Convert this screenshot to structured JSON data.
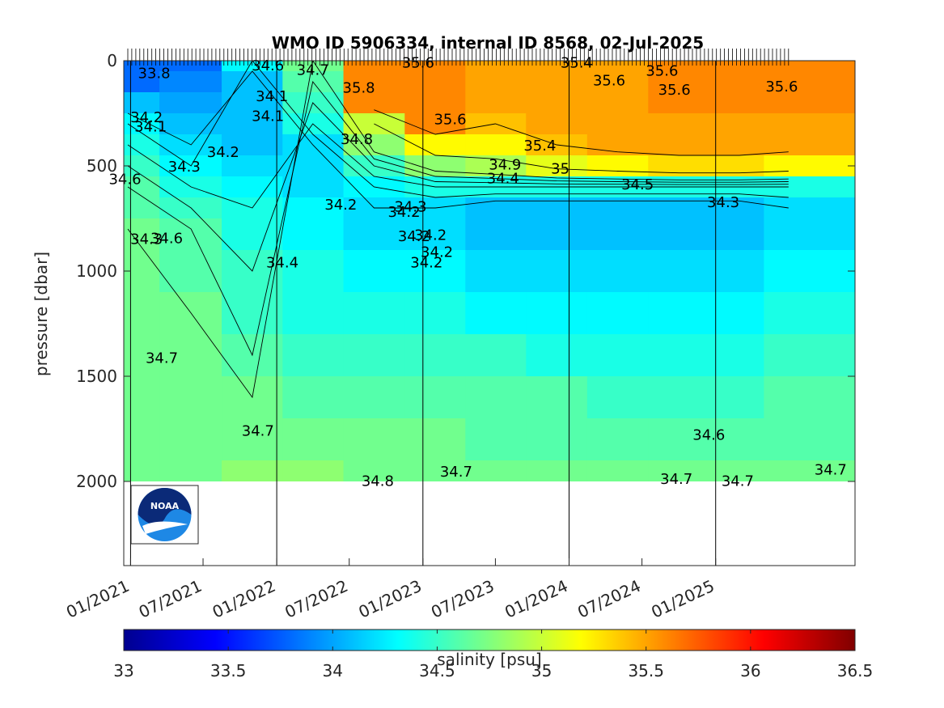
{
  "chart_data": {
    "type": "heatmap",
    "title": "WMO ID 5906334, internal ID 8568, 02-Jul-2025",
    "ylabel": "pressure [dbar]",
    "xlabel": "",
    "y_axis_reversed": true,
    "ylim": [
      0,
      2400
    ],
    "y_ticks": [
      0,
      500,
      1000,
      1500,
      2000
    ],
    "y_tick_labels": [
      "0",
      "500",
      "1000",
      "1500",
      "2000"
    ],
    "xlim": [
      "2020-12-15",
      "2025-12-15"
    ],
    "x_ticks": [
      "2021-01-01",
      "2021-07-01",
      "2022-01-01",
      "2022-07-01",
      "2023-01-01",
      "2023-07-01",
      "2024-01-01",
      "2024-07-01",
      "2025-01-01"
    ],
    "x_tick_labels": [
      "01/2021",
      "07/2021",
      "01/2022",
      "07/2022",
      "01/2023",
      "07/2023",
      "01/2024",
      "07/2024",
      "01/2025"
    ],
    "year_lines": [
      "2021-01-01",
      "2022-01-01",
      "2023-01-01",
      "2024-01-01",
      "2025-01-01"
    ],
    "colorbar": {
      "label": "salinity [psu]",
      "min": 33,
      "max": 36.5,
      "ticks": [
        33,
        33.5,
        34,
        34.5,
        35,
        35.5,
        36,
        36.5
      ],
      "tick_labels": [
        "33",
        "33.5",
        "34",
        "34.5",
        "35",
        "35.5",
        "36",
        "36.5"
      ],
      "colormap": "jet"
    },
    "profile_dates": [
      "2020-12-25",
      "2021-06-01",
      "2021-11-01",
      "2022-04-01",
      "2022-09-01",
      "2023-02-01",
      "2023-07-01",
      "2023-12-01",
      "2024-05-01",
      "2024-10-01",
      "2025-03-01",
      "2025-07-02"
    ],
    "pressure_levels": [
      0,
      100,
      200,
      300,
      400,
      500,
      600,
      700,
      800,
      1000,
      1200,
      1400,
      1600,
      1800,
      2000
    ],
    "salinity": [
      [
        33.8,
        33.8,
        34.3,
        34.7,
        35.6,
        35.6,
        35.5,
        35.5,
        35.5,
        35.6,
        35.6,
        35.6
      ],
      [
        33.8,
        33.9,
        34.1,
        34.6,
        35.6,
        35.6,
        35.5,
        35.5,
        35.5,
        35.6,
        35.6,
        35.6
      ],
      [
        34.1,
        34.0,
        34.1,
        34.5,
        35.6,
        35.6,
        35.5,
        35.5,
        35.5,
        35.6,
        35.6,
        35.6
      ],
      [
        34.3,
        34.1,
        34.1,
        34.4,
        35.0,
        35.6,
        35.4,
        35.5,
        35.5,
        35.5,
        35.5,
        35.5
      ],
      [
        34.4,
        34.2,
        34.1,
        34.2,
        34.8,
        35.2,
        35.2,
        35.4,
        35.5,
        35.5,
        35.5,
        35.5
      ],
      [
        34.5,
        34.3,
        34.2,
        34.2,
        34.5,
        34.8,
        34.9,
        35.1,
        35.2,
        35.3,
        35.3,
        35.2
      ],
      [
        34.6,
        34.4,
        34.3,
        34.2,
        34.3,
        34.4,
        34.4,
        34.4,
        34.4,
        34.4,
        34.4,
        34.4
      ],
      [
        34.6,
        34.5,
        34.4,
        34.3,
        34.2,
        34.2,
        34.1,
        34.1,
        34.1,
        34.1,
        34.1,
        34.2
      ],
      [
        34.7,
        34.6,
        34.4,
        34.3,
        34.2,
        34.2,
        34.1,
        34.1,
        34.1,
        34.1,
        34.1,
        34.2
      ],
      [
        34.7,
        34.6,
        34.5,
        34.4,
        34.3,
        34.3,
        34.2,
        34.2,
        34.2,
        34.2,
        34.2,
        34.3
      ],
      [
        34.7,
        34.7,
        34.5,
        34.4,
        34.4,
        34.4,
        34.3,
        34.3,
        34.3,
        34.3,
        34.3,
        34.4
      ],
      [
        34.7,
        34.7,
        34.6,
        34.5,
        34.5,
        34.5,
        34.5,
        34.4,
        34.4,
        34.4,
        34.4,
        34.5
      ],
      [
        34.7,
        34.7,
        34.7,
        34.6,
        34.6,
        34.6,
        34.6,
        34.6,
        34.5,
        34.5,
        34.5,
        34.6
      ],
      [
        34.7,
        34.7,
        34.7,
        34.7,
        34.7,
        34.7,
        34.6,
        34.6,
        34.6,
        34.6,
        34.6,
        34.6
      ],
      [
        34.7,
        34.7,
        34.8,
        34.8,
        34.7,
        34.7,
        34.7,
        34.7,
        34.7,
        34.7,
        34.7,
        34.7
      ]
    ],
    "contour_labels": [
      {
        "text": "33.8",
        "date": "2021-03-01",
        "p": 55
      },
      {
        "text": "34.6",
        "date": "2021-12-10",
        "p": 20
      },
      {
        "text": "34.7",
        "date": "2022-04-01",
        "p": 40
      },
      {
        "text": "34.1",
        "date": "2021-12-20",
        "p": 165
      },
      {
        "text": "34.1",
        "date": "2021-12-10",
        "p": 260
      },
      {
        "text": "35.8",
        "date": "2022-07-25",
        "p": 125
      },
      {
        "text": "35.6",
        "date": "2022-12-20",
        "p": 5
      },
      {
        "text": "35.6",
        "date": "2023-03-10",
        "p": 275
      },
      {
        "text": "35.4",
        "date": "2024-01-20",
        "p": 5
      },
      {
        "text": "35.6",
        "date": "2024-04-10",
        "p": 90
      },
      {
        "text": "35.6",
        "date": "2024-08-20",
        "p": 45
      },
      {
        "text": "35.6",
        "date": "2024-09-20",
        "p": 135
      },
      {
        "text": "35.6",
        "date": "2025-06-15",
        "p": 120
      },
      {
        "text": "34.2",
        "date": "2021-02-10",
        "p": 265
      },
      {
        "text": "34.1",
        "date": "2021-02-20",
        "p": 310
      },
      {
        "text": "34.2",
        "date": "2021-08-20",
        "p": 430
      },
      {
        "text": "34.3",
        "date": "2021-05-15",
        "p": 500
      },
      {
        "text": "34.6",
        "date": "2020-12-18",
        "p": 560
      },
      {
        "text": "34.8",
        "date": "2022-07-20",
        "p": 370
      },
      {
        "text": "35.4",
        "date": "2023-10-20",
        "p": 400
      },
      {
        "text": "34.9",
        "date": "2023-07-25",
        "p": 490
      },
      {
        "text": "35",
        "date": "2023-12-10",
        "p": 510
      },
      {
        "text": "34.4",
        "date": "2023-07-20",
        "p": 555
      },
      {
        "text": "34.5",
        "date": "2024-06-20",
        "p": 585
      },
      {
        "text": "34.3",
        "date": "2025-01-20",
        "p": 670
      },
      {
        "text": "34.2",
        "date": "2022-06-10",
        "p": 680
      },
      {
        "text": "34.3",
        "date": "2022-12-01",
        "p": 690
      },
      {
        "text": "34.2",
        "date": "2022-11-15",
        "p": 715
      },
      {
        "text": "34.2",
        "date": "2022-12-10",
        "p": 830
      },
      {
        "text": "34.2",
        "date": "2023-01-20",
        "p": 825
      },
      {
        "text": "34.2",
        "date": "2023-02-05",
        "p": 905
      },
      {
        "text": "34.2",
        "date": "2023-01-10",
        "p": 955
      },
      {
        "text": "34.4",
        "date": "2022-01-15",
        "p": 955
      },
      {
        "text": "34.3",
        "date": "2021-02-10",
        "p": 845
      },
      {
        "text": "34.6",
        "date": "2021-04-01",
        "p": 840
      },
      {
        "text": "34.7",
        "date": "2021-03-20",
        "p": 1410
      },
      {
        "text": "34.7",
        "date": "2021-11-15",
        "p": 1755
      },
      {
        "text": "34.6",
        "date": "2024-12-15",
        "p": 1775
      },
      {
        "text": "34.8",
        "date": "2022-09-10",
        "p": 1995
      },
      {
        "text": "34.7",
        "date": "2023-03-25",
        "p": 1950
      },
      {
        "text": "34.7",
        "date": "2024-09-25",
        "p": 1985
      },
      {
        "text": "34.7",
        "date": "2025-02-25",
        "p": 1995
      },
      {
        "text": "34.7",
        "date": "2025-10-15",
        "p": 1940
      }
    ]
  }
}
